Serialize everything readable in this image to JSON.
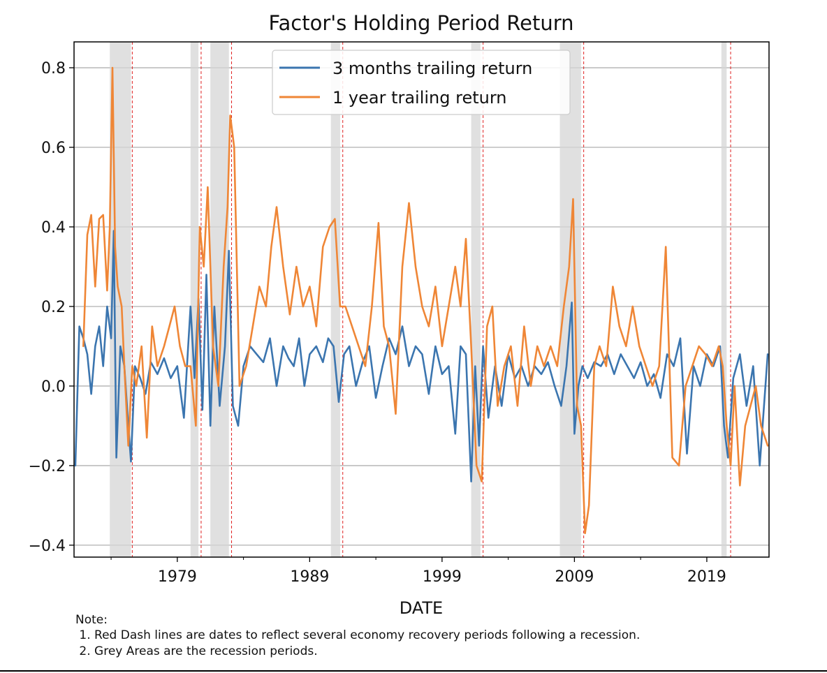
{
  "chart_data": {
    "type": "line",
    "title": "Factor's Holding Period Return",
    "xlabel": "DATE",
    "ylabel": "",
    "xlim": [
      1971.2,
      2023.7
    ],
    "ylim": [
      -0.43,
      0.865
    ],
    "x_ticks": [
      1979,
      1989,
      1999,
      2009,
      2019
    ],
    "y_ticks": [
      {
        "value": 0.8,
        "label": "0.8"
      },
      {
        "value": 0.6,
        "label": "0.6"
      },
      {
        "value": 0.4,
        "label": "0.4"
      },
      {
        "value": 0.2,
        "label": "0.2"
      },
      {
        "value": 0.0,
        "label": "0.0"
      },
      {
        "value": -0.2,
        "label": "−0.2"
      },
      {
        "value": -0.4,
        "label": "−0.4"
      }
    ],
    "grid": "horizontal",
    "legend_position": "top-center",
    "recession_periods": [
      [
        1973.9,
        1975.5
      ],
      [
        1980.0,
        1980.6
      ],
      [
        1981.5,
        1982.9
      ],
      [
        1990.6,
        1991.3
      ],
      [
        2001.2,
        2001.9
      ],
      [
        2007.9,
        2009.5
      ],
      [
        2020.1,
        2020.5
      ]
    ],
    "recovery_dates": [
      1975.6,
      1980.8,
      1983.1,
      1991.5,
      2002.1,
      2009.7,
      2020.8
    ],
    "series": [
      {
        "name": "3 months trailing return",
        "color": "#3b75af",
        "x": [
          1971.3,
          1971.6,
          1971.9,
          1972.2,
          1972.5,
          1972.8,
          1973.1,
          1973.4,
          1973.7,
          1974.0,
          1974.2,
          1974.4,
          1974.7,
          1975.0,
          1975.3,
          1975.5,
          1975.8,
          1976.2,
          1976.6,
          1977.0,
          1977.5,
          1978.0,
          1978.5,
          1979.0,
          1979.5,
          1980.0,
          1980.3,
          1980.6,
          1980.9,
          1981.2,
          1981.5,
          1981.8,
          1982.2,
          1982.6,
          1982.9,
          1983.2,
          1983.6,
          1984.0,
          1984.5,
          1985.0,
          1985.5,
          1986.0,
          1986.5,
          1987.0,
          1987.4,
          1987.8,
          1988.2,
          1988.6,
          1989.0,
          1989.5,
          1990.0,
          1990.4,
          1990.8,
          1991.2,
          1991.6,
          1992.0,
          1992.5,
          1993.0,
          1993.5,
          1994.0,
          1994.5,
          1995.0,
          1995.5,
          1996.0,
          1996.5,
          1997.0,
          1997.5,
          1998.0,
          1998.5,
          1999.0,
          1999.5,
          2000.0,
          2000.4,
          2000.8,
          2001.2,
          2001.5,
          2001.8,
          2002.1,
          2002.5,
          2003.0,
          2003.5,
          2004.0,
          2004.5,
          2005.0,
          2005.5,
          2006.0,
          2006.5,
          2007.0,
          2007.5,
          2008.0,
          2008.4,
          2008.8,
          2009.0,
          2009.3,
          2009.6,
          2010.0,
          2010.5,
          2011.0,
          2011.5,
          2012.0,
          2012.5,
          2013.0,
          2013.5,
          2014.0,
          2014.5,
          2015.0,
          2015.5,
          2016.0,
          2016.5,
          2017.0,
          2017.5,
          2018.0,
          2018.5,
          2019.0,
          2019.5,
          2020.0,
          2020.3,
          2020.6,
          2021.0,
          2021.5,
          2022.0,
          2022.5,
          2023.0,
          2023.6
        ],
        "y": [
          -0.2,
          0.15,
          0.12,
          0.08,
          -0.02,
          0.1,
          0.15,
          0.05,
          0.2,
          0.12,
          0.39,
          -0.18,
          0.1,
          0.05,
          -0.1,
          -0.19,
          0.05,
          0.02,
          -0.02,
          0.06,
          0.03,
          0.07,
          0.02,
          0.05,
          -0.08,
          0.2,
          0.02,
          0.22,
          -0.06,
          0.28,
          -0.1,
          0.2,
          -0.05,
          0.1,
          0.34,
          -0.05,
          -0.1,
          0.05,
          0.1,
          0.08,
          0.06,
          0.12,
          0.0,
          0.1,
          0.07,
          0.05,
          0.12,
          0.0,
          0.08,
          0.1,
          0.06,
          0.12,
          0.1,
          -0.04,
          0.08,
          0.1,
          0.0,
          0.06,
          0.1,
          -0.03,
          0.05,
          0.12,
          0.08,
          0.15,
          0.05,
          0.1,
          0.08,
          -0.02,
          0.1,
          0.03,
          0.05,
          -0.12,
          0.1,
          0.08,
          -0.24,
          0.05,
          -0.15,
          0.1,
          -0.08,
          0.05,
          -0.05,
          0.08,
          0.02,
          0.05,
          0.0,
          0.05,
          0.03,
          0.06,
          0.0,
          -0.05,
          0.05,
          0.21,
          -0.12,
          0.0,
          0.05,
          0.02,
          0.06,
          0.05,
          0.08,
          0.03,
          0.08,
          0.05,
          0.02,
          0.06,
          0.0,
          0.03,
          -0.03,
          0.08,
          0.05,
          0.12,
          -0.17,
          0.05,
          0.0,
          0.08,
          0.05,
          0.1,
          -0.1,
          -0.18,
          0.02,
          0.08,
          -0.05,
          0.05,
          -0.2,
          0.08
        ]
      },
      {
        "name": "1 year trailing return",
        "color": "#ef8636",
        "x": [
          1971.9,
          1972.2,
          1972.5,
          1972.8,
          1973.1,
          1973.4,
          1973.7,
          1973.9,
          1974.1,
          1974.3,
          1974.5,
          1974.8,
          1975.0,
          1975.3,
          1975.6,
          1975.9,
          1976.3,
          1976.7,
          1977.1,
          1977.5,
          1978.0,
          1978.4,
          1978.8,
          1979.2,
          1979.6,
          1980.0,
          1980.4,
          1980.7,
          1981.0,
          1981.3,
          1981.7,
          1982.1,
          1982.5,
          1982.8,
          1983.0,
          1983.3,
          1983.7,
          1984.2,
          1984.7,
          1985.2,
          1985.7,
          1986.1,
          1986.5,
          1987.0,
          1987.5,
          1988.0,
          1988.5,
          1989.0,
          1989.5,
          1990.0,
          1990.5,
          1990.9,
          1991.3,
          1991.7,
          1992.2,
          1992.7,
          1993.2,
          1993.7,
          1994.2,
          1994.6,
          1995.0,
          1995.5,
          1996.0,
          1996.5,
          1997.0,
          1997.5,
          1998.0,
          1998.5,
          1999.0,
          1999.5,
          2000.0,
          2000.4,
          2000.8,
          2001.2,
          2001.6,
          2002.0,
          2002.4,
          2002.8,
          2003.2,
          2003.7,
          2004.2,
          2004.7,
          2005.2,
          2005.7,
          2006.2,
          2006.7,
          2007.2,
          2007.7,
          2008.2,
          2008.6,
          2008.9,
          2009.2,
          2009.5,
          2009.8,
          2010.1,
          2010.5,
          2010.9,
          2011.4,
          2011.9,
          2012.4,
          2012.9,
          2013.4,
          2013.9,
          2014.4,
          2014.9,
          2015.4,
          2015.9,
          2016.4,
          2016.9,
          2017.4,
          2017.9,
          2018.4,
          2018.9,
          2019.4,
          2019.9,
          2020.2,
          2020.5,
          2020.8,
          2021.1,
          2021.5,
          2021.9,
          2022.3,
          2022.7,
          2023.1,
          2023.6
        ],
        "y": [
          0.1,
          0.38,
          0.43,
          0.25,
          0.42,
          0.43,
          0.24,
          0.4,
          0.8,
          0.35,
          0.25,
          0.2,
          0.05,
          -0.15,
          0.05,
          0.0,
          0.1,
          -0.13,
          0.15,
          0.05,
          0.1,
          0.15,
          0.2,
          0.1,
          0.05,
          0.05,
          -0.1,
          0.4,
          0.3,
          0.5,
          0.1,
          0.0,
          0.3,
          0.45,
          0.68,
          0.6,
          0.0,
          0.05,
          0.15,
          0.25,
          0.2,
          0.35,
          0.45,
          0.3,
          0.18,
          0.3,
          0.2,
          0.25,
          0.15,
          0.35,
          0.4,
          0.42,
          0.2,
          0.2,
          0.15,
          0.1,
          0.05,
          0.2,
          0.41,
          0.15,
          0.1,
          -0.07,
          0.3,
          0.46,
          0.3,
          0.2,
          0.15,
          0.25,
          0.1,
          0.2,
          0.3,
          0.2,
          0.37,
          0.1,
          -0.2,
          -0.24,
          0.15,
          0.2,
          -0.05,
          0.05,
          0.1,
          -0.05,
          0.15,
          0.0,
          0.1,
          0.05,
          0.1,
          0.05,
          0.2,
          0.3,
          0.47,
          -0.05,
          -0.1,
          -0.37,
          -0.3,
          0.05,
          0.1,
          0.05,
          0.25,
          0.15,
          0.1,
          0.2,
          0.1,
          0.05,
          0.0,
          0.05,
          0.35,
          -0.18,
          -0.2,
          0.0,
          0.05,
          0.1,
          0.08,
          0.05,
          0.1,
          0.05,
          -0.1,
          -0.2,
          0.0,
          -0.25,
          -0.1,
          -0.05,
          0.0,
          -0.1,
          -0.15
        ]
      }
    ],
    "note_lines": [
      "Note:",
      " 1. Red Dash lines are dates to reflect several economy recovery periods following a recession.",
      " 2. Grey Areas are the recession periods."
    ]
  }
}
